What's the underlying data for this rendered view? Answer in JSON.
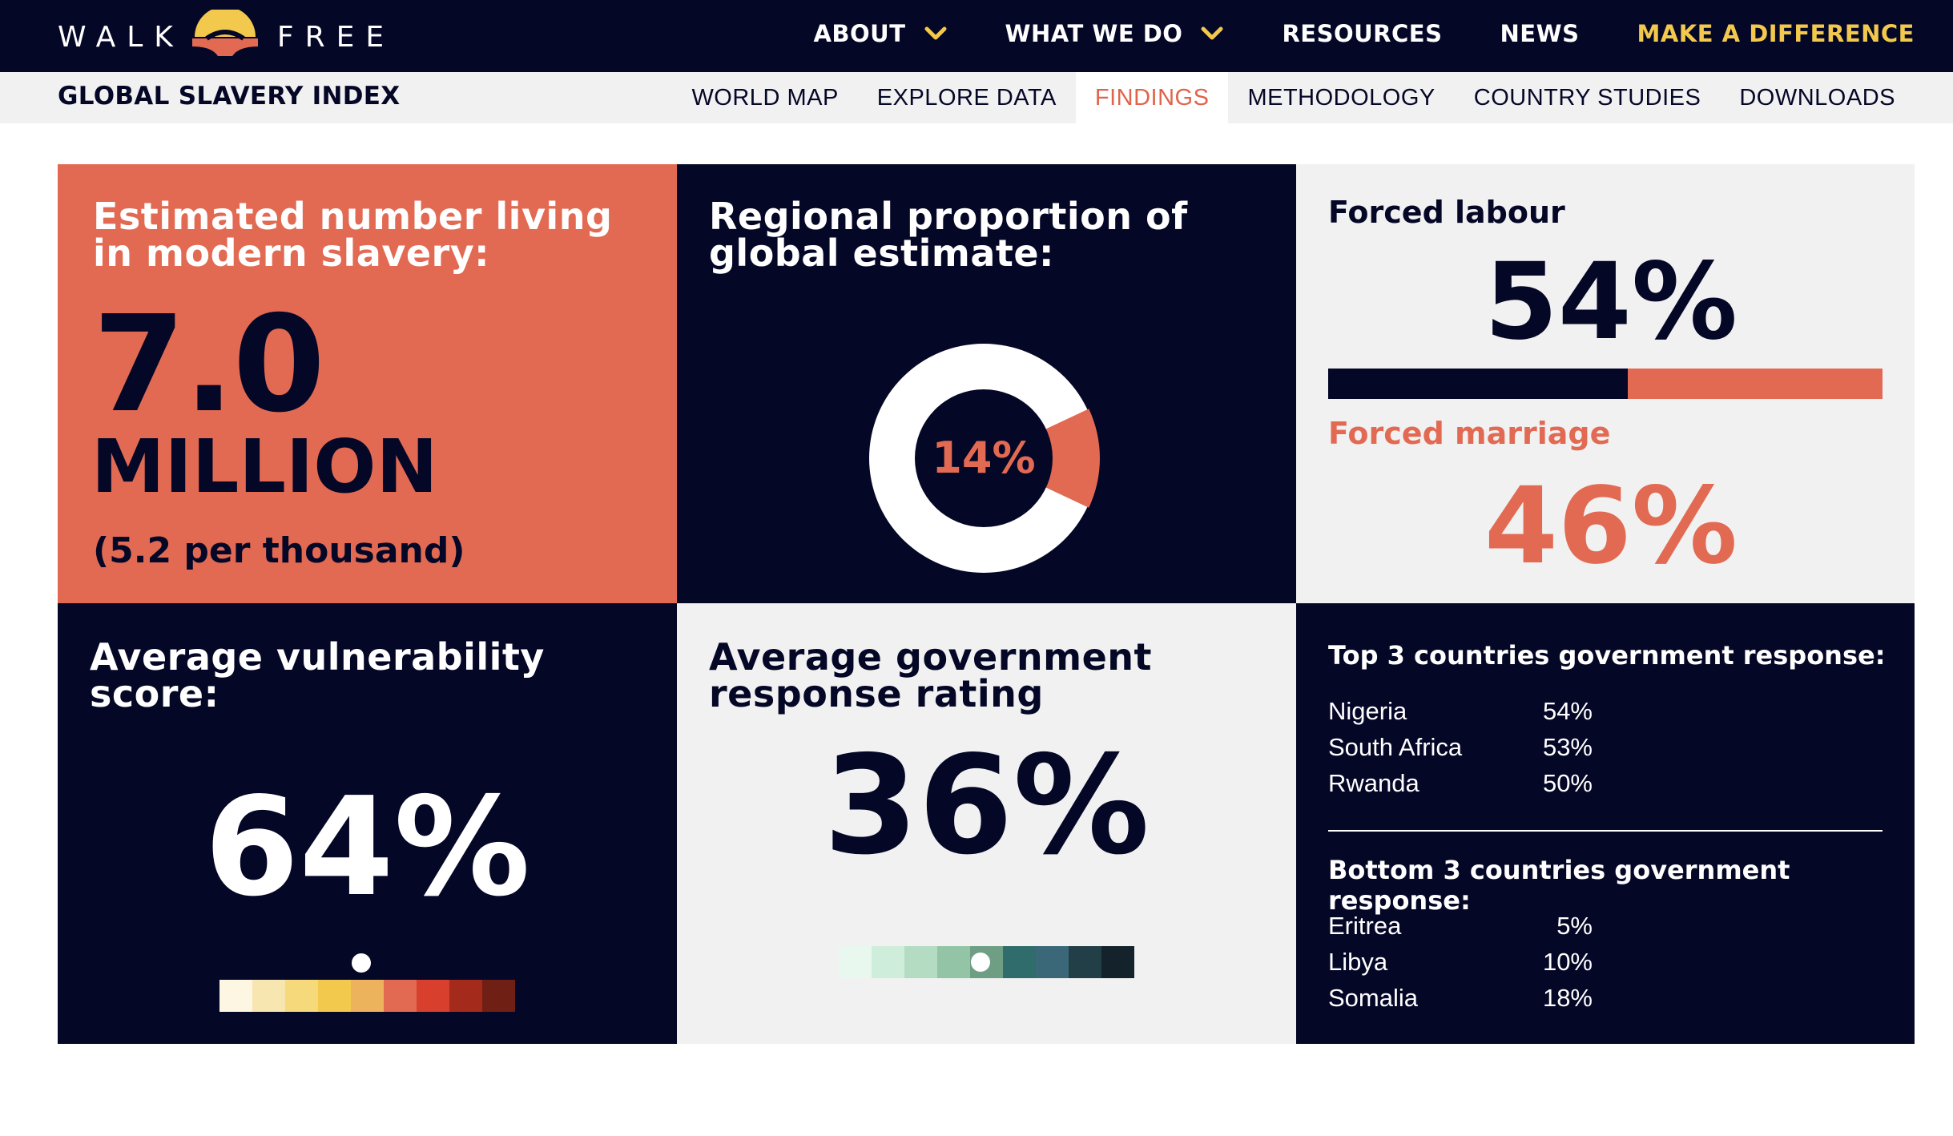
{
  "brand": {
    "left_word": "WALK",
    "right_word": "FREE",
    "accent": "#f2c94c",
    "coral": "#e26a53",
    "navy": "#050727"
  },
  "nav": [
    {
      "label": "ABOUT",
      "dropdown": true
    },
    {
      "label": "WHAT WE DO",
      "dropdown": true
    },
    {
      "label": "RESOURCES",
      "dropdown": false
    },
    {
      "label": "NEWS",
      "dropdown": false
    },
    {
      "label": "MAKE A DIFFERENCE",
      "dropdown": false,
      "highlight": true
    }
  ],
  "subnav": {
    "title": "GLOBAL SLAVERY INDEX",
    "items": [
      {
        "label": "WORLD MAP"
      },
      {
        "label": "EXPLORE DATA"
      },
      {
        "label": "FINDINGS",
        "active": true
      },
      {
        "label": "METHODOLOGY"
      },
      {
        "label": "COUNTRY STUDIES"
      },
      {
        "label": "DOWNLOADS"
      }
    ]
  },
  "estimate": {
    "heading": "Estimated number living in modern slavery:",
    "value": "7.0",
    "unit": "MILLION",
    "per_thousand": "(5.2 per thousand)"
  },
  "regional": {
    "heading": "Regional proportion of global estimate:",
    "label": "14%",
    "fraction": 0.14
  },
  "types": {
    "forced_labour_label": "Forced labour",
    "forced_labour_value": "54%",
    "forced_labour_fraction": 0.54,
    "forced_marriage_label": "Forced marriage",
    "forced_marriage_value": "46%"
  },
  "vulnerability": {
    "heading": "Average vulnerability score:",
    "value": "64%",
    "scale_colors": [
      "#fdf6e3",
      "#f8e6b0",
      "#f5d97a",
      "#f2c94c",
      "#ecb25c",
      "#e26a53",
      "#d93f2d",
      "#a42a1c",
      "#701f14"
    ],
    "indicator_level": 0.48
  },
  "government": {
    "heading": "Average government response rating",
    "value": "36%",
    "scale_colors": [
      "#e9f8ef",
      "#cfeddb",
      "#b3dcc3",
      "#94c4a6",
      "#6e9e84",
      "#2f6c6b",
      "#3a6878",
      "#223f48",
      "#14232b"
    ],
    "indicator_level": 0.48
  },
  "rankings": {
    "top_heading": "Top 3 countries government response:",
    "top": [
      {
        "country": "Nigeria",
        "pct": "54%"
      },
      {
        "country": "South Africa",
        "pct": "53%"
      },
      {
        "country": "Rwanda",
        "pct": "50%"
      }
    ],
    "bottom_heading": "Bottom 3 countries government response:",
    "bottom": [
      {
        "country": "Eritrea",
        "pct": "5%"
      },
      {
        "country": "Libya",
        "pct": "10%"
      },
      {
        "country": "Somalia",
        "pct": "18%"
      }
    ]
  }
}
